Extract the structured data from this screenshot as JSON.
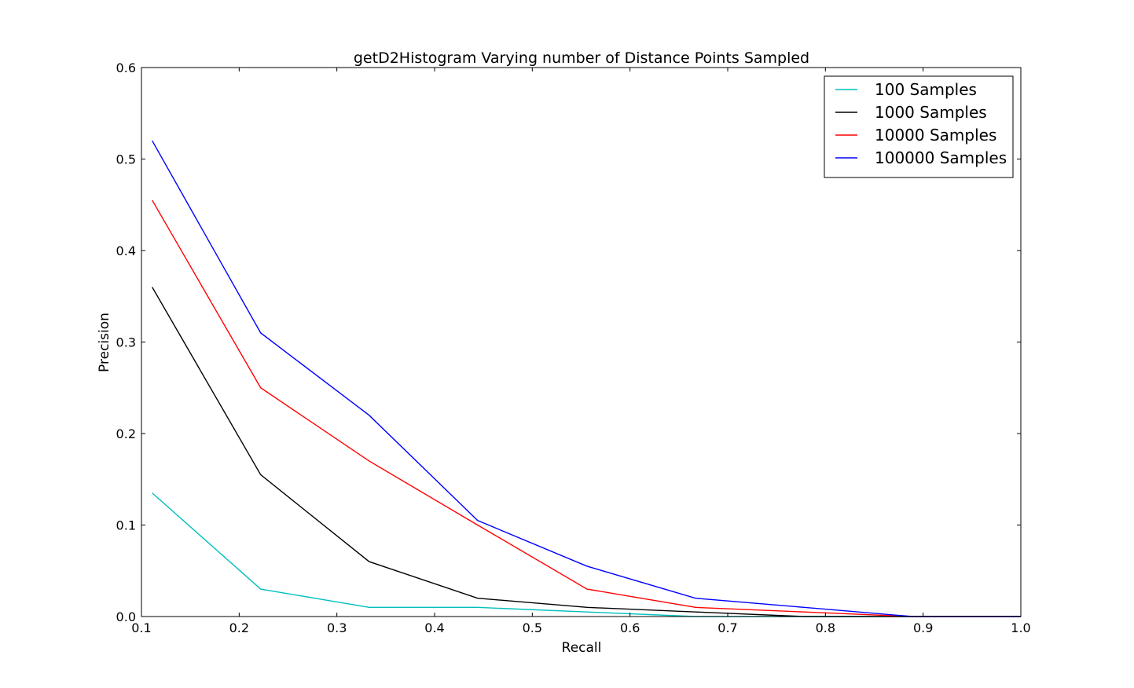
{
  "chart_data": {
    "type": "line",
    "title": "getD2Histogram Varying number of Distance Points Sampled",
    "xlabel": "Recall",
    "ylabel": "Precision",
    "xlim": [
      0.1,
      1.0
    ],
    "ylim": [
      0.0,
      0.6
    ],
    "xticks": [
      "0.1",
      "0.2",
      "0.3",
      "0.4",
      "0.5",
      "0.6",
      "0.7",
      "0.8",
      "0.9",
      "1.0"
    ],
    "yticks": [
      "0.0",
      "0.1",
      "0.2",
      "0.3",
      "0.4",
      "0.5",
      "0.6"
    ],
    "grid": false,
    "legend_position": "top-right",
    "x": [
      0.111,
      0.222,
      0.333,
      0.444,
      0.556,
      0.667,
      0.778,
      0.889,
      1.0
    ],
    "series": [
      {
        "name": "100 Samples",
        "color": "#00bfbf",
        "values": [
          0.135,
          0.03,
          0.01,
          0.01,
          0.005,
          0.0,
          0.0,
          0.0,
          0.0
        ]
      },
      {
        "name": "1000 Samples",
        "color": "#000000",
        "values": [
          0.36,
          0.155,
          0.06,
          0.02,
          0.01,
          0.005,
          0.0,
          0.0,
          0.0
        ]
      },
      {
        "name": "10000 Samples",
        "color": "#ff0000",
        "values": [
          0.455,
          0.25,
          0.17,
          0.1,
          0.03,
          0.01,
          0.005,
          0.0,
          0.0
        ]
      },
      {
        "name": "100000 Samples",
        "color": "#0000ff",
        "values": [
          0.52,
          0.31,
          0.22,
          0.105,
          0.055,
          0.02,
          0.01,
          0.0,
          0.0
        ]
      }
    ]
  }
}
